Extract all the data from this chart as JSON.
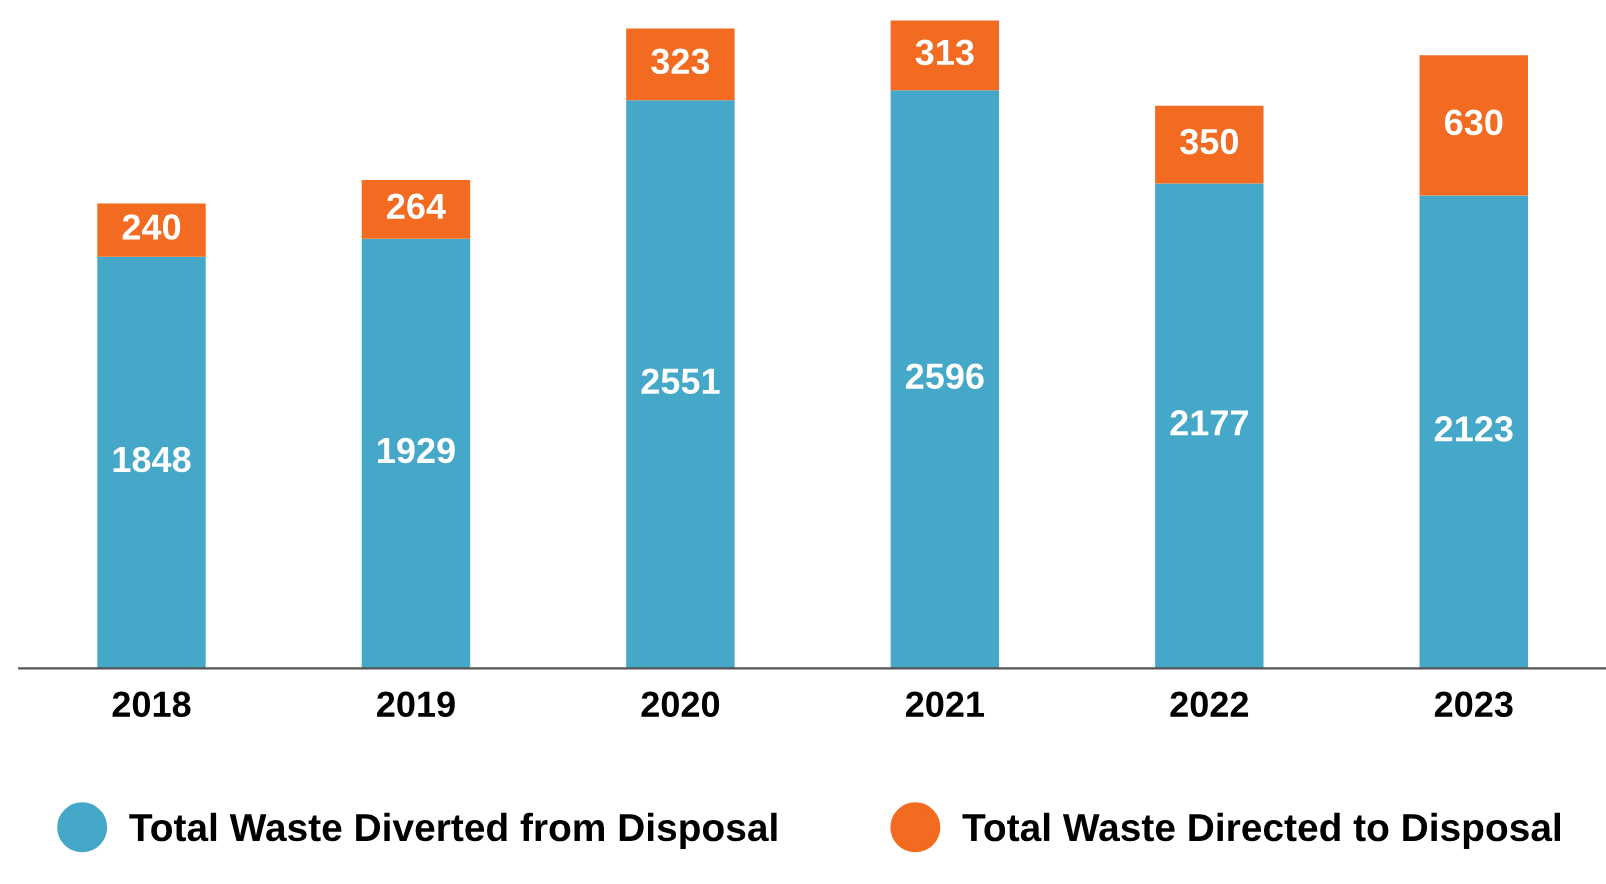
{
  "chart_data": {
    "type": "bar",
    "stacked": true,
    "data_labels": true,
    "legend": "bottom",
    "grid": false,
    "marker": "circle",
    "categories": [
      "2018",
      "2019",
      "2020",
      "2021",
      "2022",
      "2023"
    ],
    "series": [
      {
        "name": "Total Waste Diverted from Disposal",
        "color": "#45a8c8",
        "values": [
          1848,
          1929,
          2551,
          2596,
          2177,
          2123
        ]
      },
      {
        "name": "Total Waste Directed to Disposal",
        "color": "#f26b21",
        "values": [
          240,
          264,
          323,
          313,
          350,
          630
        ]
      }
    ]
  }
}
